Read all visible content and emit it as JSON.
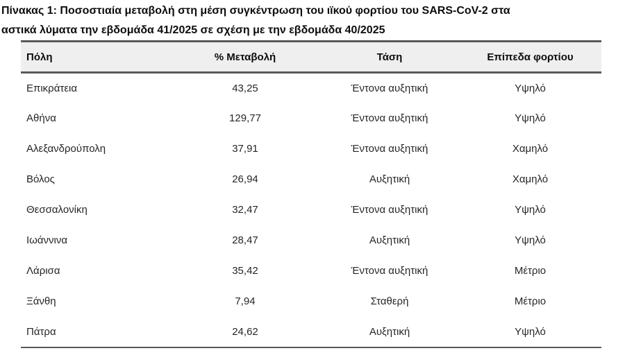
{
  "title": {
    "line1": "Πίνακας 1: Ποσοστιαία μεταβολή στη μέση συγκέντρωση του ιϊκού φορτίου του SARS-CoV-2 στα",
    "line2": "αστικά λύματα την εβδομάδα 41/2025 σε σχέση με την εβδομάδα 40/2025",
    "full": "Πίνακας 1: Ποσοστιαία μεταβολή στη μέση συγκέντρωση του ιϊκού φορτίου του SARS-CoV-2 στα αστικά λύματα την εβδομάδα 41/2025 σε σχέση με την εβδομάδα 40/2025"
  },
  "table": {
    "columns": [
      "Πόλη",
      "% Μεταβολή",
      "Τάση",
      "Επίπεδα φορτίου"
    ],
    "rows": [
      {
        "city": "Επικράτεια",
        "change": "43,25",
        "trend": "Έντονα αυξητική",
        "load": "Υψηλό"
      },
      {
        "city": "Αθήνα",
        "change": "129,77",
        "trend": "Έντονα αυξητική",
        "load": "Υψηλό"
      },
      {
        "city": "Αλεξανδρούπολη",
        "change": "37,91",
        "trend": "Έντονα αυξητική",
        "load": "Χαμηλό"
      },
      {
        "city": "Βόλος",
        "change": "26,94",
        "trend": "Αυξητική",
        "load": "Χαμηλό"
      },
      {
        "city": "Θεσσαλονίκη",
        "change": "32,47",
        "trend": "Έντονα αυξητική",
        "load": "Υψηλό"
      },
      {
        "city": "Ιωάννινα",
        "change": "28,47",
        "trend": "Αυξητική",
        "load": "Υψηλό"
      },
      {
        "city": "Λάρισα",
        "change": "35,42",
        "trend": "Έντονα αυξητική",
        "load": "Μέτριο"
      },
      {
        "city": "Ξάνθη",
        "change": "7,94",
        "trend": "Σταθερή",
        "load": "Μέτριο"
      },
      {
        "city": "Πάτρα",
        "change": "24,62",
        "trend": "Αυξητική",
        "load": "Υψηλό"
      }
    ]
  },
  "colors": {
    "header_background": "#EFEFEF",
    "border": "#595959",
    "title_text": "#0D0D0D",
    "body_text": "#262626",
    "page_background": "#FFFFFF"
  }
}
